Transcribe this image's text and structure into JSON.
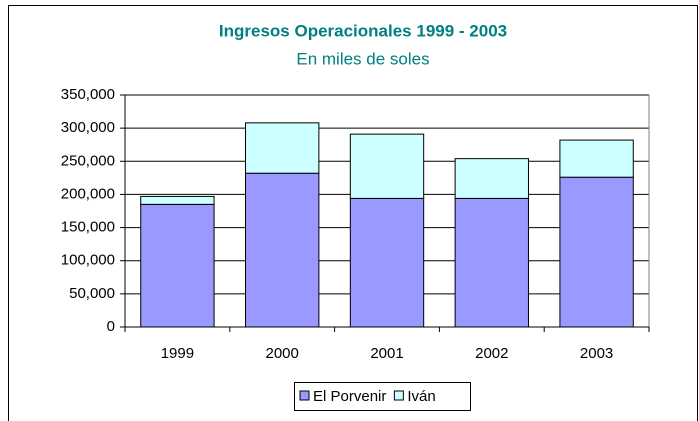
{
  "chart_data": {
    "type": "stacked_bar",
    "title": "Ingresos Operacionales 1999 - 2003",
    "subtitle": "En miles de soles",
    "categories": [
      "1999",
      "2000",
      "2001",
      "2002",
      "2003"
    ],
    "series": [
      {
        "name": "El Porvenir",
        "color": "#9999ff",
        "values": [
          185000,
          232000,
          194000,
          194000,
          226000
        ]
      },
      {
        "name": "Iván",
        "color": "#ccffff",
        "values": [
          12000,
          76000,
          97000,
          60000,
          56000
        ]
      }
    ],
    "ylim": [
      0,
      350000
    ],
    "yticks": [
      0,
      {
        "value": 50000,
        "label": "50,000"
      },
      {
        "value": 100000,
        "label": "100,000"
      },
      {
        "value": 150000,
        "label": "150,000"
      },
      {
        "value": 200000,
        "label": "200,000"
      },
      {
        "value": 250000,
        "label": "250,000"
      },
      {
        "value": 300000,
        "label": "300,000"
      },
      {
        "value": 350000,
        "label": "350,000"
      }
    ],
    "grid": true,
    "legend": "bottom"
  }
}
